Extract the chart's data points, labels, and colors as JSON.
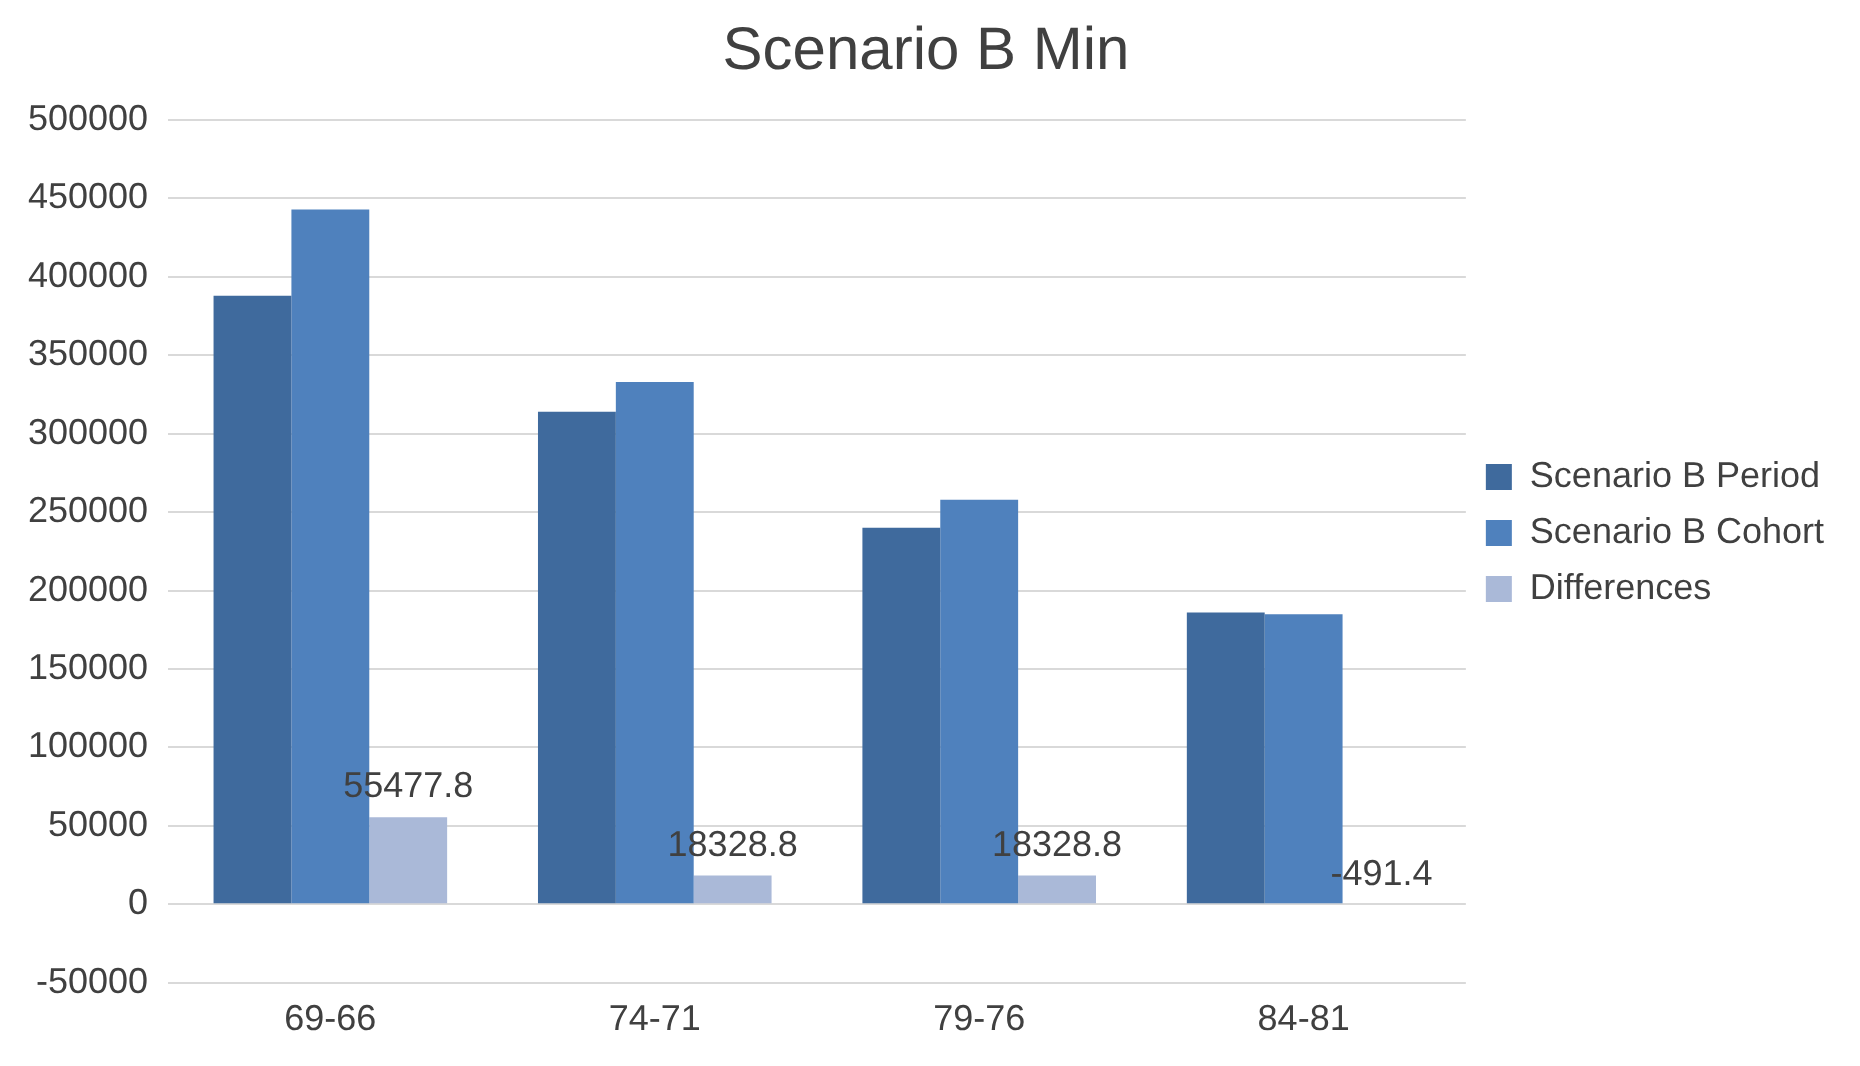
{
  "chart_data": {
    "type": "bar",
    "title": "Scenario B Min",
    "categories": [
      "69-66",
      "74-71",
      "79-76",
      "84-81"
    ],
    "series": [
      {
        "name": "Scenario B Period",
        "color": "#3f6a9d",
        "values": [
          388000,
          314000,
          240000,
          186000
        ]
      },
      {
        "name": "Scenario B Cohort",
        "color": "#4f81bd",
        "values": [
          443000,
          333000,
          258000,
          185000
        ]
      },
      {
        "name": "Differences",
        "color": "#aab9d8",
        "values": [
          55477.8,
          18328.8,
          18328.8,
          -491.4
        ],
        "value_labels": [
          "55477.8",
          "18328.8",
          "18328.8",
          "-491.4"
        ]
      }
    ],
    "ylim": [
      -50000,
      500000
    ],
    "yticks": [
      -50000,
      0,
      50000,
      100000,
      150000,
      200000,
      250000,
      300000,
      350000,
      400000,
      450000,
      500000
    ],
    "grid": "y",
    "legend": "right"
  }
}
